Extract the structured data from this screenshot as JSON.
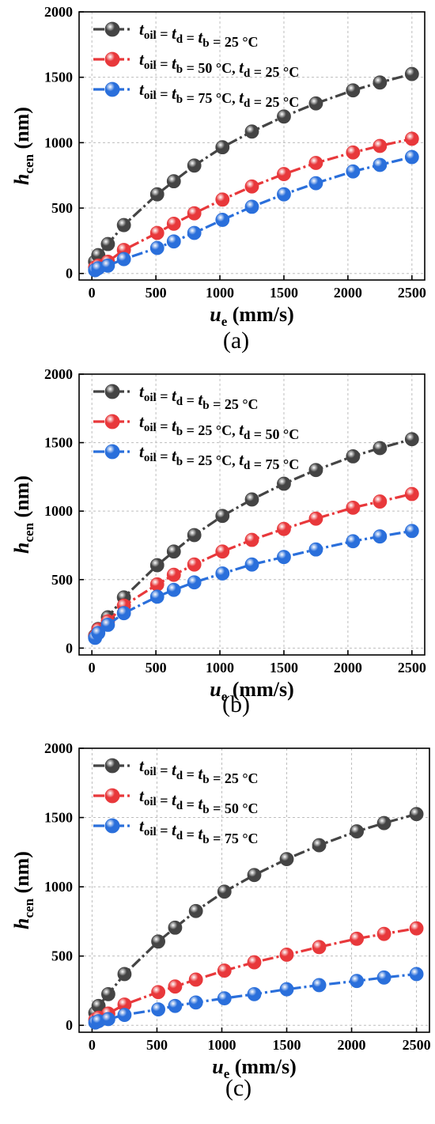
{
  "chart_data": [
    {
      "type": "line",
      "panel_label": "(a)",
      "xlabel": {
        "main": "u",
        "sub": "e",
        "unit": " (mm/s)"
      },
      "ylabel": {
        "main": "h",
        "sub": "cen",
        "unit": " (nm)"
      },
      "xlim": [
        -100,
        2600
      ],
      "ylim": [
        -50,
        2000
      ],
      "xticks": [
        0,
        500,
        1000,
        1500,
        2000,
        2500
      ],
      "yticks": [
        0,
        500,
        1000,
        1500,
        2000
      ],
      "grid": true,
      "legend_position": "top-left",
      "x": [
        25,
        50,
        125,
        250,
        510,
        640,
        800,
        1020,
        1250,
        1500,
        1750,
        2040,
        2250,
        2500
      ],
      "series": [
        {
          "color": "#444444",
          "legend": [
            [
              "t",
              "oil",
              ""
            ],
            [
              " = ",
              ""
            ],
            [
              "t",
              "d",
              ""
            ],
            [
              " = ",
              ""
            ],
            [
              "t",
              "b",
              ""
            ],
            [
              " = 25 °C",
              ""
            ]
          ],
          "values": [
            90,
            140,
            225,
            370,
            605,
            705,
            825,
            965,
            1085,
            1200,
            1300,
            1400,
            1460,
            1525
          ]
        },
        {
          "color": "#e8383b",
          "legend": [
            [
              "t",
              "oil",
              ""
            ],
            [
              " = ",
              ""
            ],
            [
              "t",
              "b",
              ""
            ],
            [
              " = 50 °C, ",
              ""
            ],
            [
              "t",
              "d",
              ""
            ],
            [
              " = 25 °C",
              ""
            ]
          ],
          "values": [
            45,
            60,
            90,
            180,
            310,
            380,
            460,
            565,
            665,
            760,
            845,
            925,
            975,
            1030
          ]
        },
        {
          "color": "#2a6fdb",
          "legend": [
            [
              "t",
              "oil",
              ""
            ],
            [
              " = ",
              ""
            ],
            [
              "t",
              "b",
              ""
            ],
            [
              " = 75 °C, ",
              ""
            ],
            [
              "t",
              "d",
              ""
            ],
            [
              " = 25 °C",
              ""
            ]
          ],
          "values": [
            25,
            40,
            60,
            110,
            195,
            245,
            310,
            410,
            510,
            605,
            690,
            780,
            830,
            890
          ]
        }
      ]
    },
    {
      "type": "line",
      "panel_label": "(b)",
      "xlabel": {
        "main": "u",
        "sub": "e",
        "unit": " (mm/s)"
      },
      "ylabel": {
        "main": "h",
        "sub": "cen",
        "unit": " (nm)"
      },
      "xlim": [
        -100,
        2600
      ],
      "ylim": [
        -50,
        2000
      ],
      "xticks": [
        0,
        500,
        1000,
        1500,
        2000,
        2500
      ],
      "yticks": [
        0,
        500,
        1000,
        1500,
        2000
      ],
      "grid": true,
      "legend_position": "top-left",
      "x": [
        25,
        50,
        125,
        250,
        510,
        640,
        800,
        1020,
        1250,
        1500,
        1750,
        2040,
        2250,
        2500
      ],
      "series": [
        {
          "color": "#444444",
          "legend": [
            [
              "t",
              "oil",
              ""
            ],
            [
              " = ",
              ""
            ],
            [
              "t",
              "d",
              ""
            ],
            [
              " = ",
              ""
            ],
            [
              "t",
              "b",
              ""
            ],
            [
              " = 25 °C",
              ""
            ]
          ],
          "values": [
            90,
            140,
            225,
            370,
            605,
            705,
            825,
            965,
            1085,
            1200,
            1300,
            1400,
            1460,
            1525
          ]
        },
        {
          "color": "#e8383b",
          "legend": [
            [
              "t",
              "oil",
              ""
            ],
            [
              " = ",
              ""
            ],
            [
              "t",
              "b",
              ""
            ],
            [
              " = 25 °C, ",
              ""
            ],
            [
              "t",
              "d",
              ""
            ],
            [
              " = 50 °C",
              ""
            ]
          ],
          "values": [
            85,
            135,
            195,
            310,
            465,
            535,
            610,
            705,
            790,
            870,
            945,
            1025,
            1070,
            1125
          ]
        },
        {
          "color": "#2a6fdb",
          "legend": [
            [
              "t",
              "oil",
              ""
            ],
            [
              " = ",
              ""
            ],
            [
              "t",
              "b",
              ""
            ],
            [
              " = 25 °C, ",
              ""
            ],
            [
              "t",
              "d",
              ""
            ],
            [
              " = 75 °C",
              ""
            ]
          ],
          "values": [
            75,
            110,
            170,
            255,
            375,
            425,
            480,
            545,
            610,
            665,
            720,
            780,
            815,
            855
          ]
        }
      ]
    },
    {
      "type": "line",
      "panel_label": "(c)",
      "xlabel": {
        "main": "u",
        "sub": "e",
        "unit": " (mm/s)"
      },
      "ylabel": {
        "main": "h",
        "sub": "cen",
        "unit": " (nm)"
      },
      "xlim": [
        -100,
        2600
      ],
      "ylim": [
        -50,
        2000
      ],
      "xticks": [
        0,
        500,
        1000,
        1500,
        2000,
        2500
      ],
      "yticks": [
        0,
        500,
        1000,
        1500,
        2000
      ],
      "grid": true,
      "legend_position": "top-left",
      "x": [
        25,
        50,
        125,
        250,
        510,
        640,
        800,
        1020,
        1250,
        1500,
        1750,
        2040,
        2250,
        2500
      ],
      "series": [
        {
          "color": "#444444",
          "legend": [
            [
              "t",
              "oil",
              ""
            ],
            [
              " = ",
              ""
            ],
            [
              "t",
              "d",
              ""
            ],
            [
              " = ",
              ""
            ],
            [
              "t",
              "b",
              ""
            ],
            [
              " = 25 °C",
              ""
            ]
          ],
          "values": [
            90,
            140,
            225,
            370,
            605,
            705,
            825,
            965,
            1085,
            1200,
            1300,
            1400,
            1460,
            1525
          ]
        },
        {
          "color": "#e8383b",
          "legend": [
            [
              "t",
              "oil",
              ""
            ],
            [
              " = ",
              ""
            ],
            [
              "t",
              "d",
              ""
            ],
            [
              " = ",
              ""
            ],
            [
              "t",
              "b",
              ""
            ],
            [
              " = 50 °C",
              ""
            ]
          ],
          "values": [
            40,
            55,
            85,
            150,
            240,
            280,
            330,
            395,
            455,
            510,
            565,
            625,
            660,
            700
          ]
        },
        {
          "color": "#2a6fdb",
          "legend": [
            [
              "t",
              "oil",
              ""
            ],
            [
              " = ",
              ""
            ],
            [
              "t",
              "d",
              ""
            ],
            [
              " = ",
              ""
            ],
            [
              "t",
              "b",
              ""
            ],
            [
              " = 75 °C",
              ""
            ]
          ],
          "values": [
            20,
            30,
            45,
            75,
            115,
            140,
            165,
            195,
            225,
            260,
            290,
            320,
            345,
            370
          ]
        }
      ]
    }
  ]
}
